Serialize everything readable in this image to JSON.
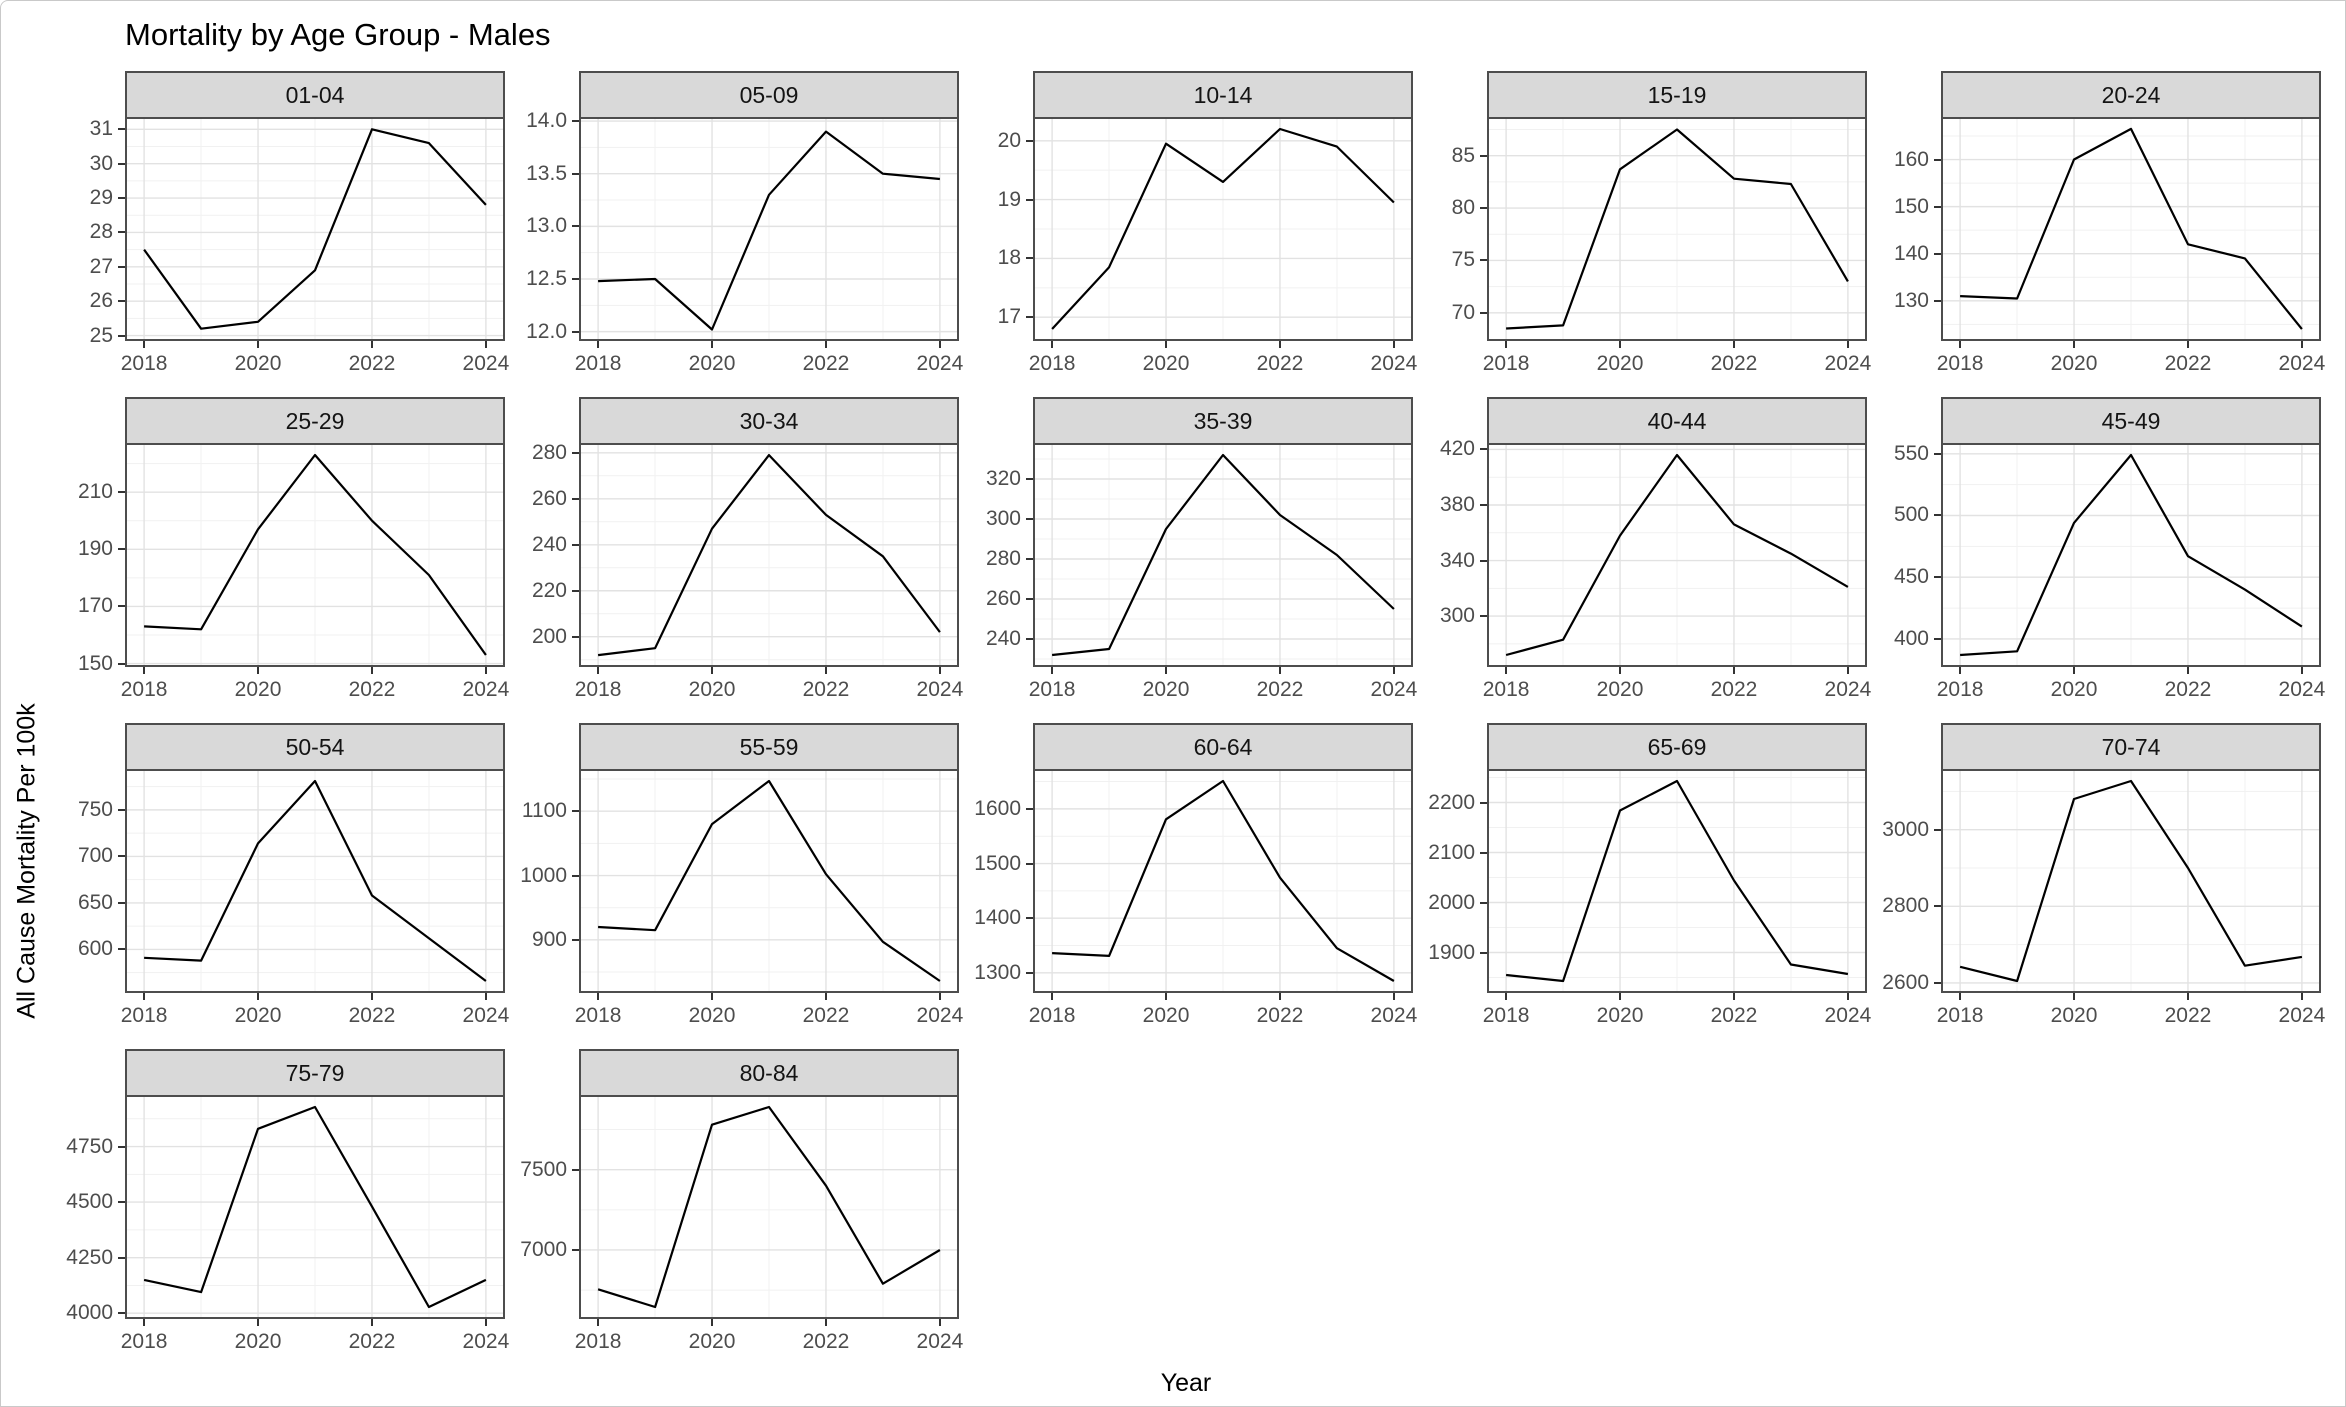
{
  "chart_data": {
    "type": "line",
    "title": "Mortality by Age Group - Males",
    "xlabel": "Year",
    "ylabel": "All Cause Mortality Per 100k",
    "legend": "none",
    "grid": true,
    "line_color": "#000000",
    "strip_fill": "#d9d9d9",
    "major_grid_color": "#e2e2e2",
    "minor_grid_color": "#f1f1f1",
    "x": [
      2018,
      2019,
      2020,
      2021,
      2022,
      2023,
      2024
    ],
    "x_ticks": [
      "2018",
      "2020",
      "2022",
      "2024"
    ],
    "x_minor": [
      2019,
      2021,
      2023
    ],
    "x_range": [
      2017.7,
      2024.3
    ],
    "facets": [
      {
        "label": "01-04",
        "y_ticks": [
          "25",
          "26",
          "27",
          "28",
          "29",
          "30",
          "31"
        ],
        "y_range": [
          24.9,
          31.3
        ],
        "values": [
          27.5,
          25.2,
          25.4,
          26.9,
          31.0,
          30.6,
          28.8
        ]
      },
      {
        "label": "05-09",
        "y_ticks": [
          "12.0",
          "12.5",
          "13.0",
          "13.5",
          "14.0"
        ],
        "y_range": [
          11.93,
          14.02
        ],
        "values": [
          12.48,
          12.5,
          12.02,
          13.3,
          13.9,
          13.5,
          13.45
        ]
      },
      {
        "label": "10-14",
        "y_ticks": [
          "17",
          "18",
          "19",
          "20"
        ],
        "y_range": [
          16.63,
          20.37
        ],
        "values": [
          16.8,
          17.85,
          19.95,
          19.3,
          20.2,
          19.9,
          18.95
        ]
      },
      {
        "label": "15-19",
        "y_ticks": [
          "70",
          "75",
          "80",
          "85"
        ],
        "y_range": [
          67.5,
          88.5
        ],
        "values": [
          68.5,
          68.8,
          83.7,
          87.5,
          82.8,
          82.3,
          73.0
        ]
      },
      {
        "label": "20-24",
        "y_ticks": [
          "130",
          "140",
          "150",
          "160"
        ],
        "y_range": [
          121.9,
          168.6
        ],
        "values": [
          131,
          130.5,
          160,
          166.5,
          142,
          139,
          124
        ]
      },
      {
        "label": "25-29",
        "y_ticks": [
          "150",
          "170",
          "190",
          "210"
        ],
        "y_range": [
          149.5,
          226.5
        ],
        "values": [
          163,
          162,
          197,
          223,
          200,
          181,
          153
        ]
      },
      {
        "label": "30-34",
        "y_ticks": [
          "200",
          "220",
          "240",
          "260",
          "280"
        ],
        "y_range": [
          187.7,
          283.4
        ],
        "values": [
          192,
          195,
          247,
          279,
          253,
          235,
          202
        ]
      },
      {
        "label": "35-39",
        "y_ticks": [
          "240",
          "260",
          "280",
          "300",
          "320"
        ],
        "y_range": [
          227,
          337
        ],
        "values": [
          232,
          235,
          295,
          332,
          302,
          282,
          255
        ]
      },
      {
        "label": "40-44",
        "y_ticks": [
          "300",
          "340",
          "380",
          "420"
        ],
        "y_range": [
          264.8,
          423.2
        ],
        "values": [
          272,
          283,
          358,
          416,
          366,
          345,
          321
        ]
      },
      {
        "label": "45-49",
        "y_ticks": [
          "400",
          "450",
          "500",
          "550"
        ],
        "y_range": [
          378.9,
          557.1
        ],
        "values": [
          387,
          390,
          494,
          549,
          467,
          440,
          410
        ]
      },
      {
        "label": "50-54",
        "y_ticks": [
          "600",
          "650",
          "700",
          "750"
        ],
        "y_range": [
          555.3,
          791.8
        ],
        "values": [
          591,
          588,
          714,
          781,
          658,
          612,
          566
        ]
      },
      {
        "label": "55-59",
        "y_ticks": [
          "900",
          "1000",
          "1100"
        ],
        "y_range": [
          820.5,
          1162.5
        ],
        "values": [
          920,
          915,
          1080,
          1147,
          1002,
          897,
          836
        ]
      },
      {
        "label": "60-64",
        "y_ticks": [
          "1300",
          "1400",
          "1500",
          "1600"
        ],
        "y_range": [
          1266.7,
          1669.3
        ],
        "values": [
          1336,
          1331,
          1581,
          1651,
          1474,
          1345,
          1285
        ]
      },
      {
        "label": "65-69",
        "y_ticks": [
          "1900",
          "2000",
          "2100",
          "2200"
        ],
        "y_range": [
          1823,
          2263
        ],
        "values": [
          1855,
          1843,
          2184,
          2243,
          2044,
          1876,
          1857
        ]
      },
      {
        "label": "70-74",
        "y_ticks": [
          "2600",
          "2800",
          "3000"
        ],
        "y_range": [
          2578.9,
          3153.1
        ],
        "values": [
          2642,
          2605,
          3080,
          3127,
          2900,
          2645,
          2668
        ]
      },
      {
        "label": "75-79",
        "y_ticks": [
          "4000",
          "4250",
          "4500",
          "4750"
        ],
        "y_range": [
          3983,
          4973
        ],
        "values": [
          4150,
          4095,
          4830,
          4928,
          4480,
          4028,
          4150
        ]
      },
      {
        "label": "80-84",
        "y_ticks": [
          "7000",
          "7500"
        ],
        "y_range": [
          6582.8,
          7952.3
        ],
        "values": [
          6755,
          6645,
          7780,
          7890,
          7400,
          6790,
          7000
        ]
      }
    ]
  }
}
